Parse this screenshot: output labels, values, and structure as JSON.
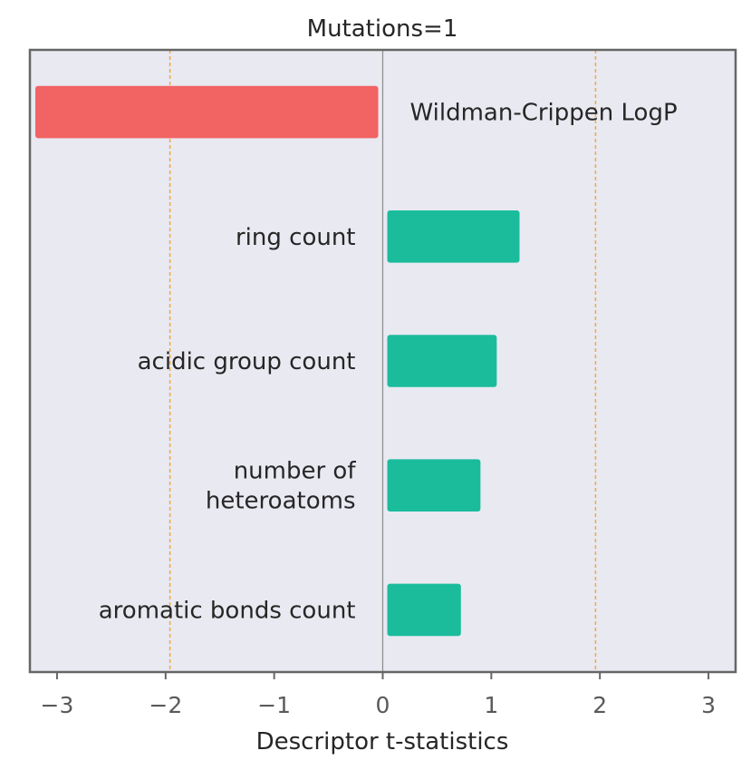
{
  "chart_data": {
    "type": "bar",
    "orientation": "horizontal",
    "title": "Mutations=1",
    "xlabel": "Descriptor t-statistics",
    "ylabel": "",
    "xlim": [
      -3.25,
      3.25
    ],
    "xticks": [
      -3,
      -2,
      -1,
      0,
      1,
      2,
      3
    ],
    "xtick_labels": [
      "−3",
      "−2",
      "−1",
      "0",
      "1",
      "2",
      "3"
    ],
    "categories": [
      "Wildman-Crippen LogP",
      "ring count",
      "acidic group count",
      "number of heteroatoms",
      "aromatic bonds count"
    ],
    "category_lines": [
      [
        "Wildman-Crippen LogP"
      ],
      [
        "ring count"
      ],
      [
        "acidic group count"
      ],
      [
        "number of",
        "heteroatoms"
      ],
      [
        "aromatic bonds count"
      ]
    ],
    "values": [
      -3.2,
      1.26,
      1.05,
      0.9,
      0.72
    ],
    "reference_lines": [
      -1.96,
      1.96
    ],
    "grid": false,
    "colors": {
      "negative": "#f26363",
      "positive": "#1abc9c",
      "background": "#e9e9f1",
      "frame": "#666666",
      "zero_line": "#8c8c8c",
      "reference_line": "#f5a83a",
      "text": "#262626",
      "tick_text": "#595959"
    }
  }
}
